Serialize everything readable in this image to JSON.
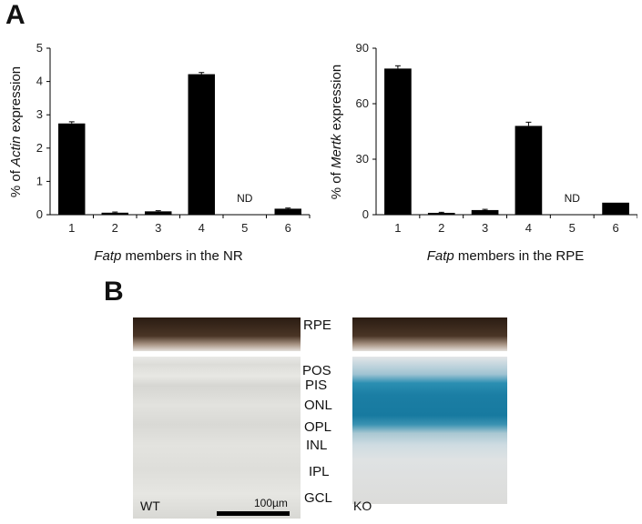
{
  "panel_a": {
    "letter": "A"
  },
  "panel_b": {
    "letter": "B"
  },
  "chart_data": [
    {
      "type": "bar",
      "categories": [
        "1",
        "2",
        "3",
        "4",
        "5",
        "6"
      ],
      "values": [
        2.74,
        0.06,
        0.1,
        4.22,
        0,
        0.18
      ],
      "errors": [
        0.05,
        0.02,
        0.02,
        0.05,
        0,
        0.02
      ],
      "ylim": [
        0,
        5
      ],
      "yticks": [
        "0",
        "1",
        "2",
        "3",
        "4",
        "5"
      ],
      "ylabel_prefix": "% of ",
      "ylabel_italic": "Actin",
      "ylabel_suffix": " expression",
      "xlabel_italic": "Fatp",
      "xlabel_suffix": " members in the NR",
      "annotation": {
        "category": "5",
        "text": "ND"
      }
    },
    {
      "type": "bar",
      "categories": [
        "1",
        "2",
        "3",
        "4",
        "5",
        "6"
      ],
      "values": [
        79,
        1,
        2.5,
        48,
        0,
        6.5
      ],
      "errors": [
        1.5,
        0.3,
        0.4,
        2,
        0,
        0
      ],
      "ylim": [
        0,
        90
      ],
      "yticks": [
        "0",
        "30",
        "60",
        "90"
      ],
      "ylabel_prefix": "% of ",
      "ylabel_italic": "Mertk",
      "ylabel_suffix": " expression",
      "xlabel_italic": "Fatp",
      "xlabel_suffix": " members in the RPE",
      "annotation": {
        "category": "5",
        "text": "ND"
      }
    }
  ],
  "micrographs": {
    "layers_top": [
      "RPE"
    ],
    "layers_bottom": [
      "POS",
      "PIS",
      "ONL",
      "OPL",
      "INL",
      "IPL",
      "GCL"
    ],
    "left_label": "WT",
    "right_label": "KO",
    "scale_bar_label": "100µm",
    "stain_color": "#1f7fa3",
    "pigment_color": "#3a2a1e"
  }
}
